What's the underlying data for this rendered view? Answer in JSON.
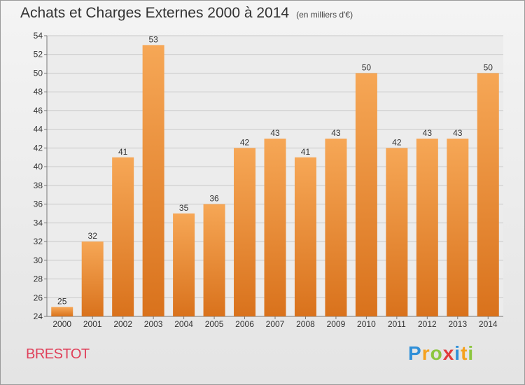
{
  "header": {
    "title": "Achats et Charges Externes 2000 à 2014",
    "subtitle": "(en milliers d'€)"
  },
  "footer": {
    "city": "BRESTOT",
    "brand": {
      "letters": [
        "P",
        "r",
        "o",
        "x",
        "i",
        "t",
        "i"
      ],
      "colors": [
        "#2f8fd8",
        "#f5a11e",
        "#8cc63f",
        "#e23b3b",
        "#2f8fd8",
        "#f5a11e",
        "#8cc63f"
      ]
    }
  },
  "chart_data": {
    "type": "bar",
    "title": "Achats et Charges Externes 2000 à 2014",
    "subtitle": "(en milliers d'€)",
    "categories": [
      "2000",
      "2001",
      "2002",
      "2003",
      "2004",
      "2005",
      "2006",
      "2007",
      "2008",
      "2009",
      "2010",
      "2011",
      "2012",
      "2013",
      "2014"
    ],
    "values": [
      25,
      32,
      41,
      53,
      35,
      36,
      42,
      43,
      41,
      43,
      50,
      42,
      43,
      43,
      50
    ],
    "ylim": [
      24,
      54
    ],
    "yticks": [
      24,
      26,
      28,
      30,
      32,
      34,
      36,
      38,
      40,
      42,
      44,
      46,
      48,
      50,
      52,
      54
    ],
    "grid": true,
    "colors": {
      "bar": "#f0913a",
      "bar_light": "#f6a756",
      "bar_dark": "#d9721c",
      "grid": "#c8c8c8"
    }
  }
}
